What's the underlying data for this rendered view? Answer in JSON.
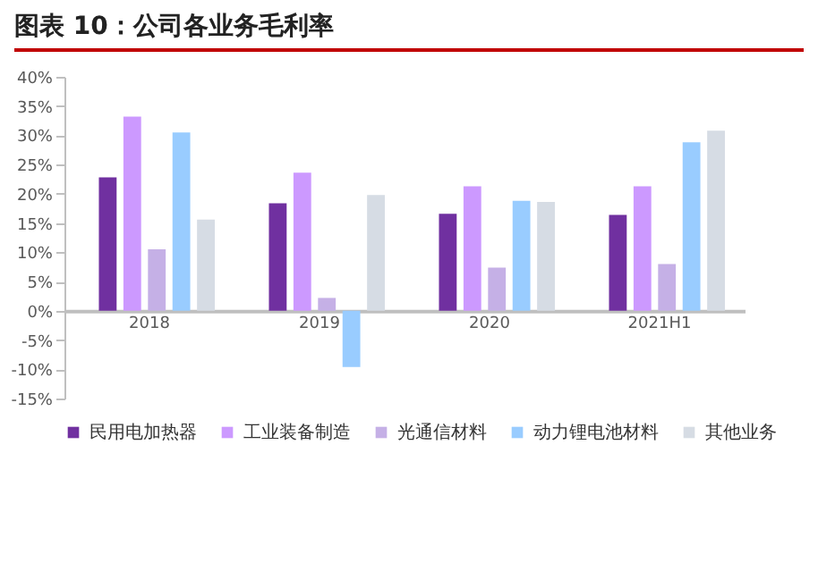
{
  "chart_data": {
    "type": "bar",
    "title": "图表 10：公司各业务毛利率",
    "categories": [
      "2018",
      "2019",
      "2020",
      "2021H1"
    ],
    "series": [
      {
        "name": "民用电加热器",
        "color": "#7030a0",
        "values": [
          22.8,
          18.4,
          16.6,
          16.4
        ]
      },
      {
        "name": "工业装备制造",
        "color": "#cc99ff",
        "values": [
          33.2,
          23.6,
          21.3,
          21.3
        ]
      },
      {
        "name": "光通信材料",
        "color": "#c5b0e6",
        "values": [
          10.5,
          2.2,
          7.4,
          8.0
        ]
      },
      {
        "name": "动力锂电池材料",
        "color": "#99ccff",
        "values": [
          30.5,
          -9.6,
          18.8,
          28.8
        ]
      },
      {
        "name": "其他业务",
        "color": "#d6dce4",
        "values": [
          15.6,
          19.8,
          18.6,
          30.8
        ]
      }
    ],
    "ylim": [
      -15,
      40
    ],
    "yticks": [
      {
        "value": -15,
        "label": "-15%"
      },
      {
        "value": -10,
        "label": "-10%"
      },
      {
        "value": -5,
        "label": "-5%"
      },
      {
        "value": 0,
        "label": "0%"
      },
      {
        "value": 5,
        "label": "5%"
      },
      {
        "value": 10,
        "label": "10%"
      },
      {
        "value": 15,
        "label": "15%"
      },
      {
        "value": 20,
        "label": "20%"
      },
      {
        "value": 25,
        "label": "25%"
      },
      {
        "value": 30,
        "label": "30%"
      },
      {
        "value": 35,
        "label": "35%"
      },
      {
        "value": 40,
        "label": "40%"
      }
    ],
    "grid": false,
    "legend": "bottom"
  }
}
